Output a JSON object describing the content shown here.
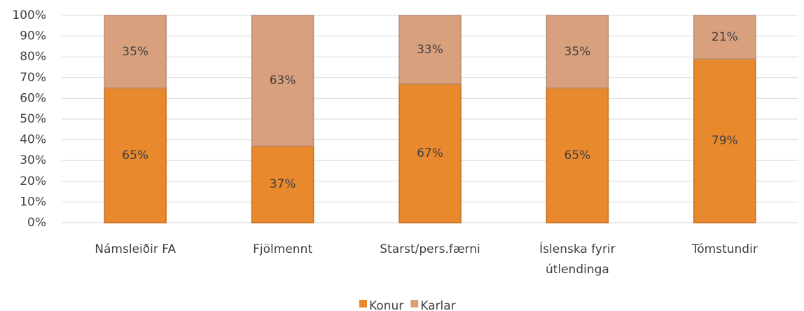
{
  "chart_data": {
    "type": "stacked_bar",
    "categories": [
      "Námsleiðir FA",
      "Fjölmennt",
      "Starst/pers.færni",
      "Íslenska fyrir útlendinga",
      "Tómstundir"
    ],
    "series": [
      {
        "name": "Konur",
        "color": "#e8892e",
        "values": [
          65,
          37,
          67,
          65,
          79
        ],
        "value_labels": [
          "65%",
          "37%",
          "67%",
          "65%",
          "79%"
        ]
      },
      {
        "name": "Karlar",
        "color": "#d9a07e",
        "values": [
          35,
          63,
          33,
          35,
          21
        ],
        "value_labels": [
          "35%",
          "63%",
          "33%",
          "35%",
          "21%"
        ]
      }
    ],
    "ylim": [
      0,
      100
    ],
    "yticks": [
      {
        "value": 0,
        "label": "0%"
      },
      {
        "value": 10,
        "label": "10%"
      },
      {
        "value": 20,
        "label": "20%"
      },
      {
        "value": 30,
        "label": "30%"
      },
      {
        "value": 40,
        "label": "40%"
      },
      {
        "value": 50,
        "label": "50%"
      },
      {
        "value": 60,
        "label": "60%"
      },
      {
        "value": 70,
        "label": "70%"
      },
      {
        "value": 80,
        "label": "80%"
      },
      {
        "value": 90,
        "label": "90%"
      },
      {
        "value": 100,
        "label": "100%"
      }
    ],
    "grid": true,
    "legend": "bottom"
  }
}
